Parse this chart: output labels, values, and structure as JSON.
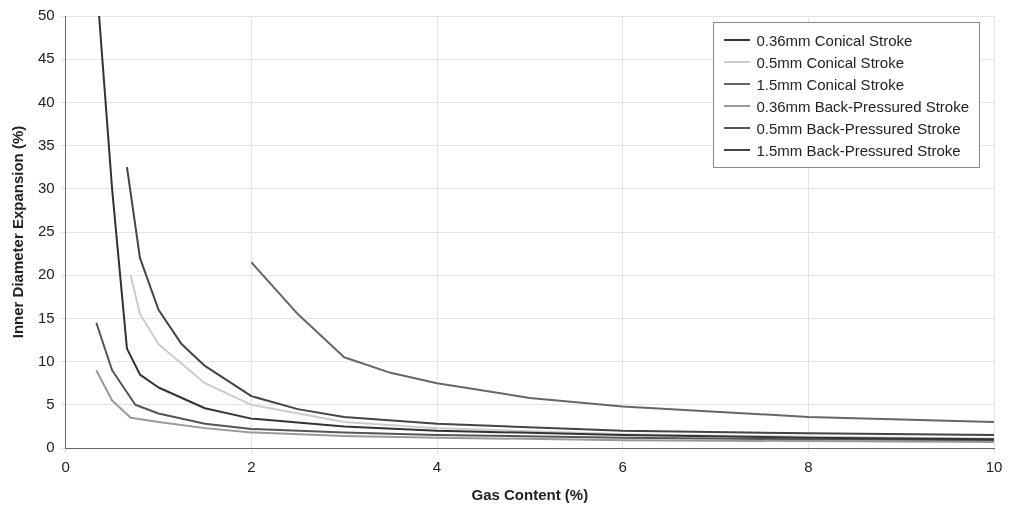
{
  "chart_data": {
    "type": "line",
    "xlabel": "Gas Content (%)",
    "ylabel": "Inner Diameter Expansion (%)",
    "xlim": [
      0,
      10
    ],
    "xticks": [
      0,
      2,
      4,
      6,
      8,
      10
    ],
    "ylim": [
      0,
      50
    ],
    "yticks": [
      0,
      5,
      10,
      15,
      20,
      25,
      30,
      35,
      40,
      45,
      50
    ],
    "grid": true,
    "legend": "top right",
    "marker": "none",
    "line_style": "solid",
    "series": [
      {
        "name": "0.36mm Conical Stroke",
        "color": "#333333",
        "x": [
          0.36,
          0.5,
          0.66,
          0.8,
          1,
          1.5,
          2,
          3,
          4,
          6,
          8,
          10
        ],
        "values": [
          50,
          30,
          11.5,
          8.5,
          7,
          4.6,
          3.4,
          2.5,
          2,
          1.5,
          1.2,
          1
        ]
      },
      {
        "name": "0.5mm Conical Stroke",
        "color": "#cccccc",
        "x": [
          0.7,
          0.8,
          1,
          1.5,
          2,
          3,
          4,
          6,
          8,
          10
        ],
        "values": [
          20,
          15.5,
          12,
          7.5,
          5,
          3,
          2.3,
          1.6,
          1.3,
          1.1
        ]
      },
      {
        "name": "1.5mm Conical Stroke",
        "color": "#666666",
        "x": [
          2,
          2.5,
          3,
          3.5,
          4,
          5,
          6,
          7,
          8,
          9,
          10
        ],
        "values": [
          21.5,
          15.5,
          10.5,
          8.7,
          7.5,
          5.8,
          4.8,
          4.2,
          3.6,
          3.3,
          3
        ]
      },
      {
        "name": "0.36mm Back-Pressured Stroke",
        "color": "#999999",
        "x": [
          0.33,
          0.5,
          0.7,
          1,
          1.5,
          2,
          3,
          4,
          6,
          8,
          10
        ],
        "values": [
          9,
          5.5,
          3.5,
          3,
          2.3,
          1.8,
          1.4,
          1.2,
          0.9,
          0.8,
          0.7
        ]
      },
      {
        "name": "0.5mm Back-Pressured Stroke",
        "color": "#555555",
        "x": [
          0.33,
          0.5,
          0.75,
          1,
          1.5,
          2,
          3,
          4,
          6,
          8,
          10
        ],
        "values": [
          14.5,
          9,
          5,
          4,
          2.8,
          2.2,
          1.8,
          1.5,
          1.2,
          1,
          0.9
        ]
      },
      {
        "name": "1.5mm Back-Pressured Stroke",
        "color": "#444444",
        "x": [
          0.66,
          0.8,
          1,
          1.25,
          1.5,
          2,
          2.5,
          3,
          4,
          6,
          8,
          10
        ],
        "values": [
          32.5,
          22,
          16,
          12,
          9.5,
          6,
          4.5,
          3.6,
          2.8,
          2,
          1.7,
          1.5
        ]
      }
    ]
  }
}
